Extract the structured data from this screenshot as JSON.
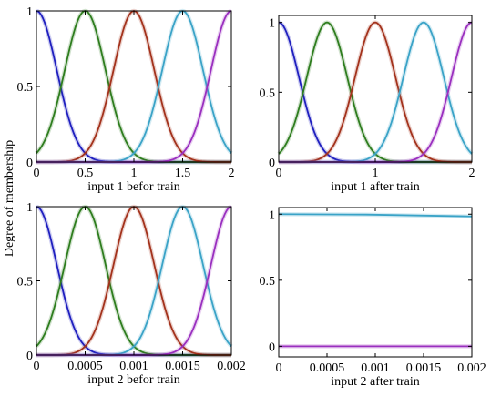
{
  "figure": {
    "shared_ylabel": "Degree of membership"
  },
  "chart_data": [
    {
      "type": "line",
      "xlabel": "input 1 befor train",
      "xlim": [
        0,
        2
      ],
      "ylim": [
        0,
        1
      ],
      "xticks": [
        "0",
        "0.5",
        "1",
        "1.5",
        "2"
      ],
      "xtick_values": [
        0,
        0.5,
        1,
        1.5,
        2
      ],
      "yticks": [
        "0",
        "0.5",
        "1"
      ],
      "ytick_values": [
        0,
        0.5,
        1
      ],
      "series": [
        {
          "color": "#1f1fbf",
          "shape": "gauss",
          "center": 0,
          "sigma": 0.21
        },
        {
          "color": "#2e7d1e",
          "shape": "gauss",
          "center": 0.5,
          "sigma": 0.21
        },
        {
          "color": "#a3321c",
          "shape": "gauss",
          "center": 1.0,
          "sigma": 0.21
        },
        {
          "color": "#3aa3c7",
          "shape": "gauss",
          "center": 1.5,
          "sigma": 0.21
        },
        {
          "color": "#9a2fbf",
          "shape": "gauss",
          "center": 2.0,
          "sigma": 0.21
        }
      ]
    },
    {
      "type": "line",
      "xlabel": "input 1 after train",
      "xlim": [
        0,
        2
      ],
      "ylim": [
        0,
        1.05
      ],
      "xticks": [
        "0",
        "1",
        "2"
      ],
      "xtick_values": [
        0,
        1,
        2
      ],
      "yticks": [
        "0",
        "0.5",
        "1"
      ],
      "ytick_values": [
        0,
        0.5,
        1
      ],
      "series": [
        {
          "color": "#1f1fbf",
          "shape": "gauss",
          "center": 0,
          "sigma": 0.21
        },
        {
          "color": "#2e7d1e",
          "shape": "gauss",
          "center": 0.5,
          "sigma": 0.21
        },
        {
          "color": "#a3321c",
          "shape": "gauss",
          "center": 1.0,
          "sigma": 0.21
        },
        {
          "color": "#3aa3c7",
          "shape": "gauss",
          "center": 1.5,
          "sigma": 0.21
        },
        {
          "color": "#9a2fbf",
          "shape": "gauss",
          "center": 2.0,
          "sigma": 0.21
        }
      ]
    },
    {
      "type": "line",
      "xlabel": "input 2 befor train",
      "xlim": [
        0,
        0.002
      ],
      "ylim": [
        0,
        1
      ],
      "xticks": [
        "0",
        "0.0005",
        "0.001",
        "0.0015",
        "0.002"
      ],
      "xtick_values": [
        0,
        0.0005,
        0.001,
        0.0015,
        0.002
      ],
      "yticks": [
        "0",
        "0.5",
        "1"
      ],
      "ytick_values": [
        0,
        0.5,
        1
      ],
      "series": [
        {
          "color": "#1f1fbf",
          "shape": "gauss",
          "center": 0,
          "sigma": 0.00021
        },
        {
          "color": "#2e7d1e",
          "shape": "gauss",
          "center": 0.0005,
          "sigma": 0.00021
        },
        {
          "color": "#a3321c",
          "shape": "gauss",
          "center": 0.001,
          "sigma": 0.00021
        },
        {
          "color": "#3aa3c7",
          "shape": "gauss",
          "center": 0.0015,
          "sigma": 0.00021
        },
        {
          "color": "#9a2fbf",
          "shape": "gauss",
          "center": 0.002,
          "sigma": 0.00021
        }
      ]
    },
    {
      "type": "line",
      "xlabel": "input 2 after train",
      "xlim": [
        0,
        0.002
      ],
      "ylim": [
        -0.08,
        1.05
      ],
      "xticks": [
        "0",
        "0.0005",
        "0.001",
        "0.0015",
        "0.002"
      ],
      "xtick_values": [
        0,
        0.0005,
        0.001,
        0.0015,
        0.002
      ],
      "yticks": [
        "0",
        "0.5",
        "1"
      ],
      "ytick_values": [
        0,
        0.5,
        1
      ],
      "series": [
        {
          "color": "#3aa3c7",
          "shape": "points",
          "x": [
            0,
            0.0009,
            0.002
          ],
          "y": [
            1.0,
            0.997,
            0.983
          ]
        },
        {
          "color": "#9a2fbf",
          "shape": "points",
          "x": [
            0,
            0.002
          ],
          "y": [
            0,
            0
          ]
        }
      ]
    }
  ]
}
